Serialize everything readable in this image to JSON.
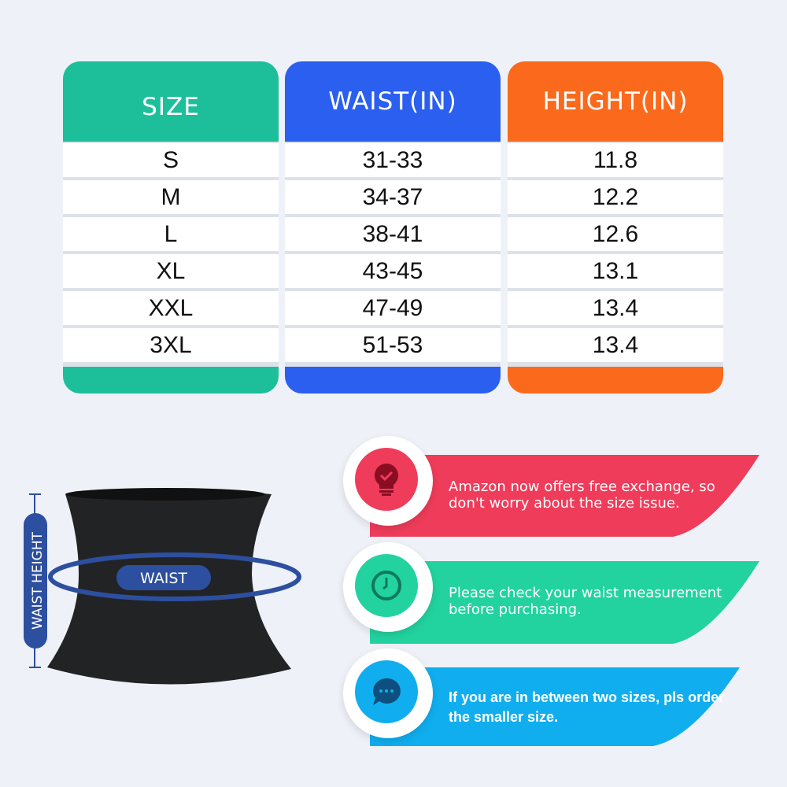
{
  "table": {
    "columns": [
      {
        "header": "SIZE",
        "color": "#1dbf9a",
        "values": [
          "S",
          "M",
          "L",
          "XL",
          "XXL",
          "3XL"
        ]
      },
      {
        "header": "WAIST(IN)",
        "color": "#2a5ff0",
        "values": [
          "31-33",
          "34-37",
          "38-41",
          "43-45",
          "47-49",
          "51-53"
        ]
      },
      {
        "header": "HEIGHT(IN)",
        "color": "#fb6a1c",
        "values": [
          "11.8",
          "12.2",
          "12.6",
          "13.1",
          "13.4",
          "13.4"
        ]
      }
    ]
  },
  "diagram": {
    "waist_label": "WAIST",
    "height_label": "WAIST HEIGHT",
    "accent": "#2d4fa0"
  },
  "tips": [
    {
      "icon": "lightbulb-check-icon",
      "color": "#ef3c5a",
      "text": "Amazon now offers free exchange, so don't worry about the size issue."
    },
    {
      "icon": "clock-icon",
      "color": "#22d39f",
      "text": "Please check your waist measurement before purchasing."
    },
    {
      "icon": "chat-bubble-icon",
      "color": "#10aeef",
      "text": "If you are in between two sizes, pls order the smaller size."
    }
  ]
}
